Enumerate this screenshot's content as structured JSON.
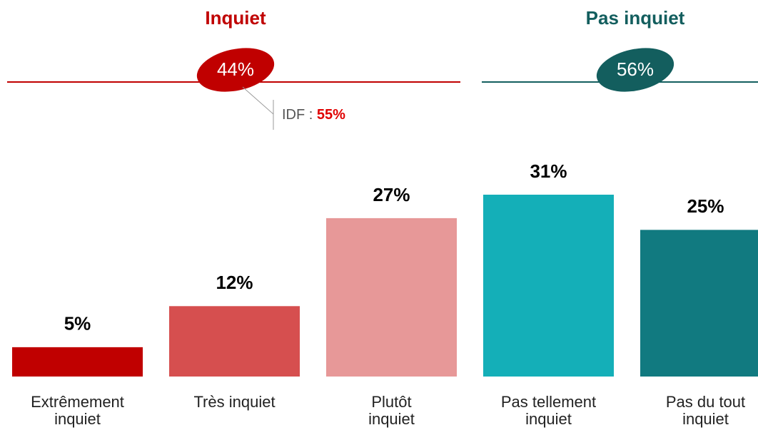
{
  "chart_data": {
    "type": "bar",
    "categories": [
      [
        "Extrêmement",
        "inquiet"
      ],
      [
        "Très inquiet"
      ],
      [
        "Plutôt",
        "inquiet"
      ],
      [
        "Pas tellement",
        "inquiet"
      ],
      [
        "Pas du tout",
        "inquiet"
      ]
    ],
    "values": [
      5,
      12,
      27,
      31,
      25
    ],
    "value_labels": [
      "5%",
      "12%",
      "27%",
      "31%",
      "25%"
    ],
    "colors": [
      "#c00000",
      "#d64f4f",
      "#e79898",
      "#14afb8",
      "#117a80"
    ],
    "groups": [
      {
        "name": "Inquiet",
        "value": 44,
        "label": "44%",
        "color": "#c00000"
      },
      {
        "name": "Pas inquiet",
        "value": 56,
        "label": "56%",
        "color": "#135e5e"
      }
    ],
    "annotation": {
      "prefix": "IDF :",
      "value": 55,
      "label": "55%"
    }
  }
}
